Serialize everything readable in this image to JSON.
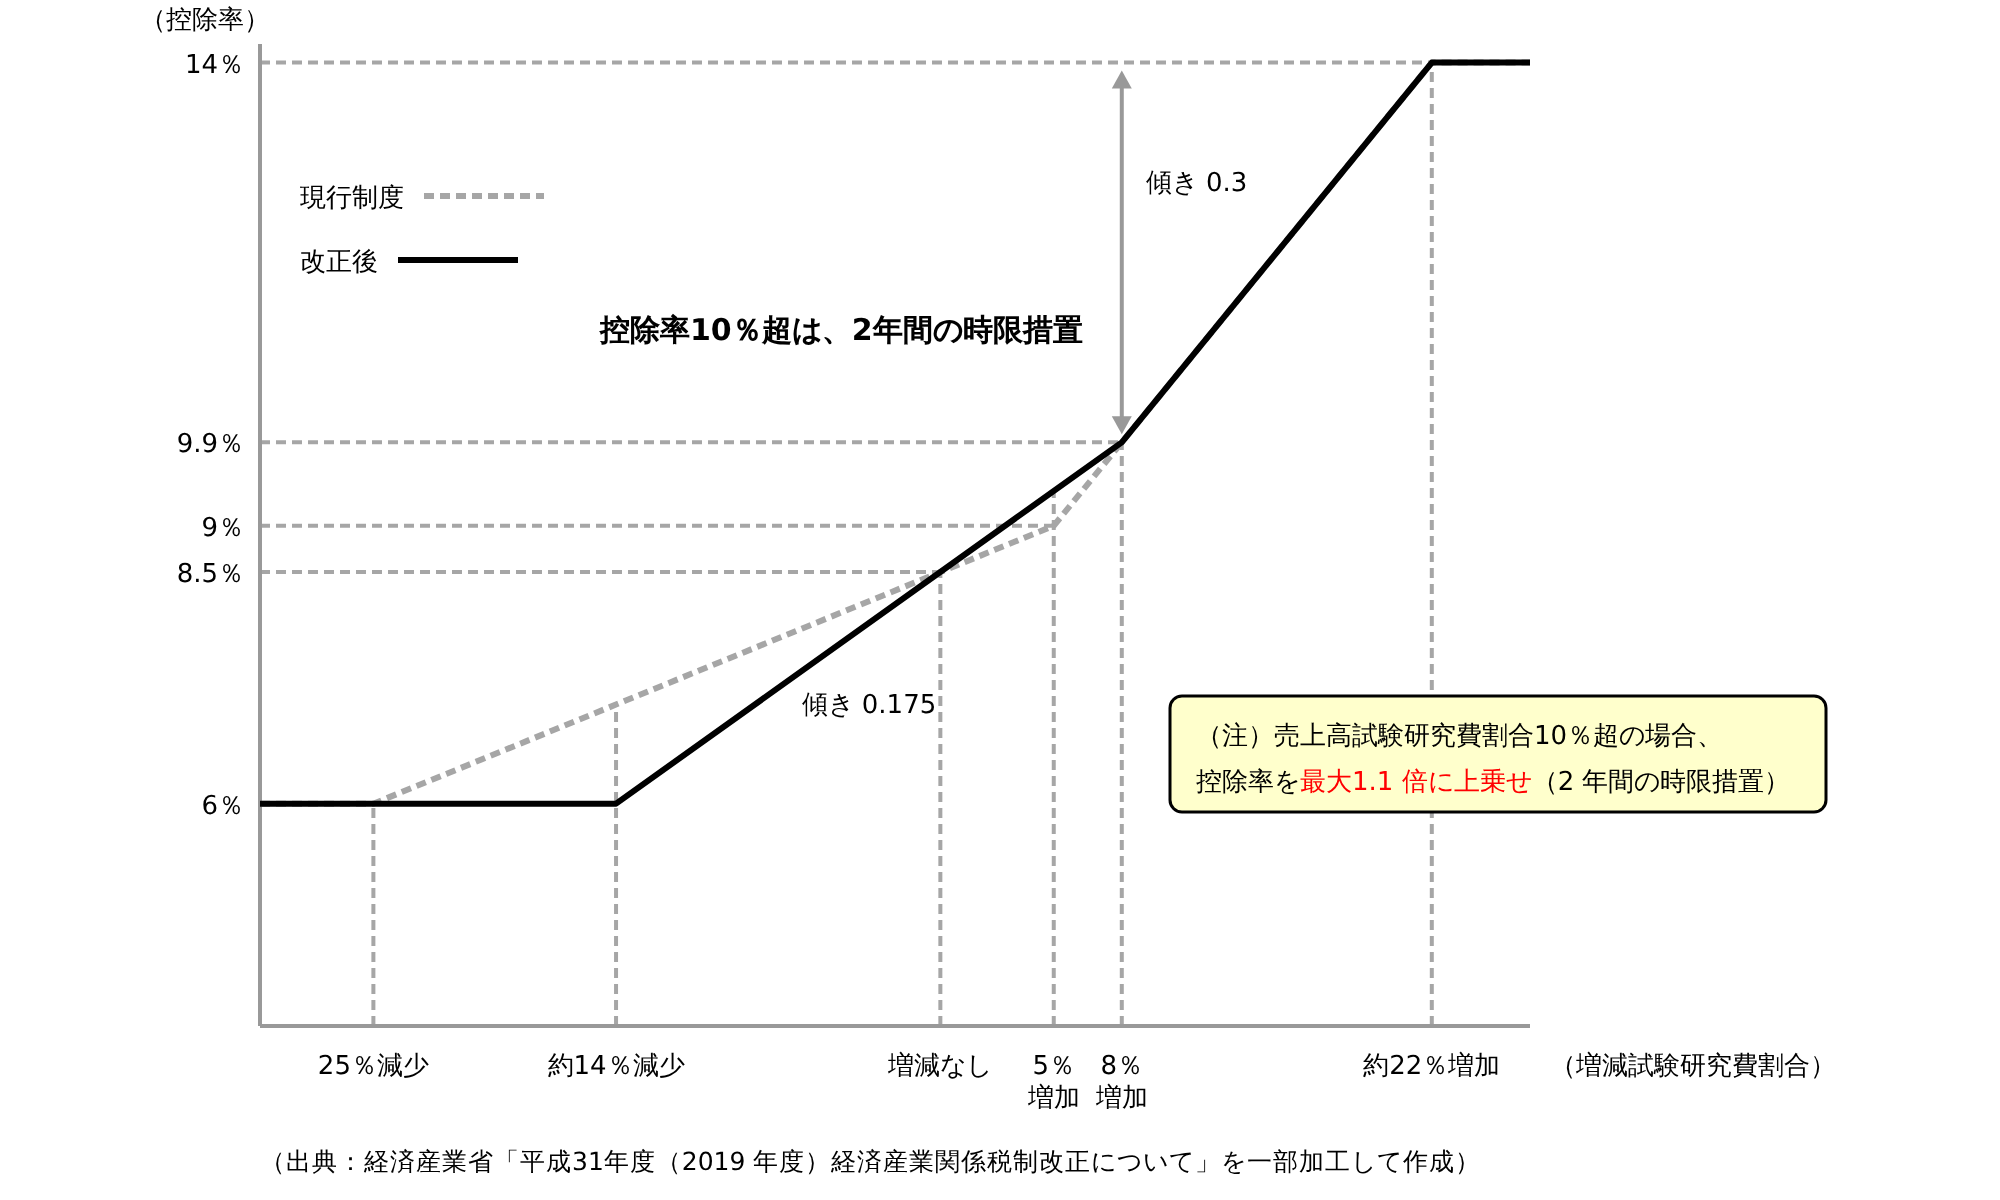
{
  "chart_data": {
    "type": "line",
    "xlabel": "（増減試験研究費割合）",
    "ylabel": "（控除率）",
    "xlim": [
      -30,
      26
    ],
    "ylim": [
      3.6,
      14.2
    ],
    "xticks": [
      {
        "value": -25,
        "label": "25％減少"
      },
      {
        "value": -14.3,
        "label": "約14％減少"
      },
      {
        "value": 0,
        "label": "増減なし"
      },
      {
        "value": 5,
        "label": "5％増加"
      },
      {
        "value": 8,
        "label": "8％増加"
      },
      {
        "value": 21.67,
        "label": "約22％増加"
      }
    ],
    "yticks": [
      {
        "value": 6,
        "label": "6％"
      },
      {
        "value": 8.5,
        "label": "8.5％"
      },
      {
        "value": 9,
        "label": "9％"
      },
      {
        "value": 9.9,
        "label": "9.9％"
      },
      {
        "value": 14,
        "label": "14％"
      }
    ],
    "series": [
      {
        "name": "現行制度",
        "color": "#a6a6a6",
        "line_style": "dashed",
        "x": [
          -30,
          -25,
          5,
          8,
          21.67,
          26
        ],
        "values": [
          6,
          6,
          9,
          9.9,
          14,
          14
        ]
      },
      {
        "name": "改正後",
        "color": "#000000",
        "line_style": "solid",
        "x": [
          -30,
          -14.3,
          8,
          21.67,
          26
        ],
        "values": [
          6,
          6,
          9.9,
          14,
          14
        ]
      }
    ],
    "ref_lines": [
      {
        "axis": "x",
        "value": -25,
        "color": "#a6a6a6",
        "line_style": "dashed"
      },
      {
        "axis": "x",
        "value": -14.3,
        "color": "#a6a6a6",
        "line_style": "dashed"
      },
      {
        "axis": "x",
        "value": 0,
        "color": "#a6a6a6",
        "line_style": "dashed"
      },
      {
        "axis": "x",
        "value": 5,
        "color": "#a6a6a6",
        "line_style": "dashed"
      },
      {
        "axis": "x",
        "value": 8,
        "color": "#a6a6a6",
        "line_style": "dashed"
      },
      {
        "axis": "x",
        "value": 21.67,
        "color": "#a6a6a6",
        "line_style": "dashed"
      },
      {
        "axis": "y",
        "value": 8.5,
        "color": "#a6a6a6",
        "line_style": "dashed"
      },
      {
        "axis": "y",
        "value": 9,
        "color": "#a6a6a6",
        "line_style": "dashed"
      },
      {
        "axis": "y",
        "value": 9.9,
        "color": "#a6a6a6",
        "line_style": "dashed"
      },
      {
        "axis": "y",
        "value": 14,
        "color": "#a6a6a6",
        "line_style": "dashed"
      }
    ],
    "annotations": [
      "傾き 0.3",
      "傾き 0.175",
      "控除率10％超は、2年間の時限措置",
      "（注）売上高試験研究費割合10％超の場合、",
      "控除率を",
      "最大1.1 倍に上乗せ",
      "（2 年間の時限措置）",
      "（出典：経済産業省「平成31年度（2019 年度）経済産業関係税制改正について」を一部加工して作成）"
    ],
    "legend": "top left",
    "grid": false
  }
}
